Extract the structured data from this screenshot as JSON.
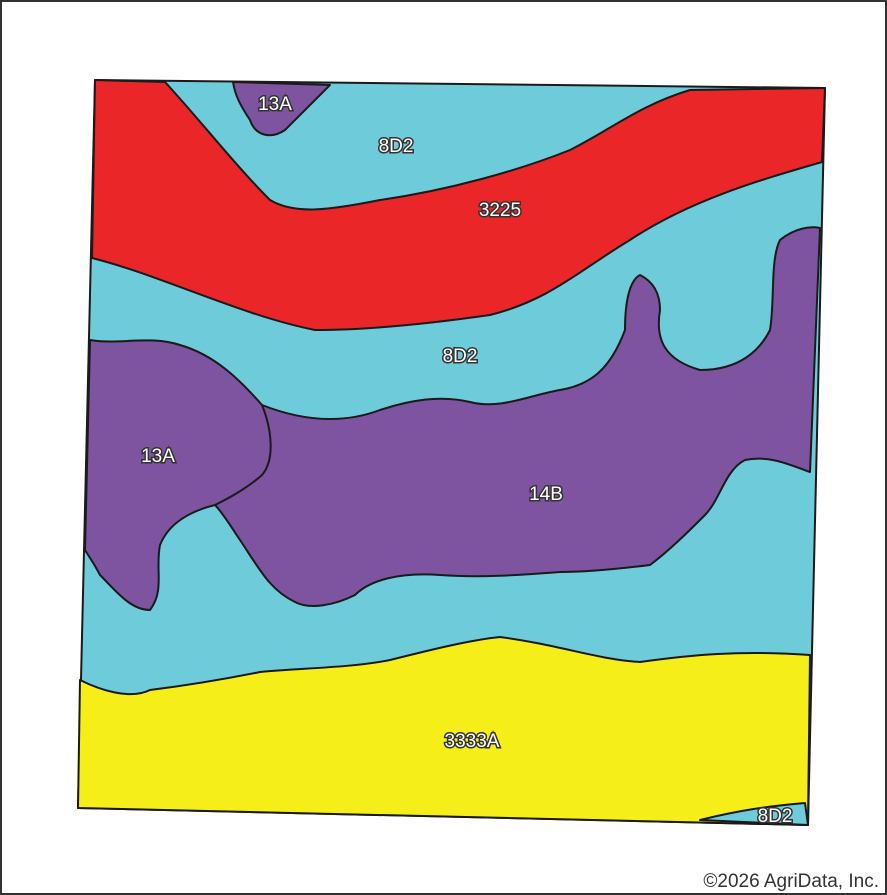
{
  "map": {
    "zones": [
      {
        "id": "13A-top",
        "label": "13A",
        "color": "#7E53A0"
      },
      {
        "id": "8D2-top",
        "label": "8D2",
        "color": "#6ECCDA"
      },
      {
        "id": "3225",
        "label": "3225",
        "color": "#EA2629"
      },
      {
        "id": "8D2-mid",
        "label": "8D2",
        "color": "#6ECCDA"
      },
      {
        "id": "13A-left",
        "label": "13A",
        "color": "#7E53A0"
      },
      {
        "id": "14B",
        "label": "14B",
        "color": "#7E53A0"
      },
      {
        "id": "3333A",
        "label": "3333A",
        "color": "#F6EE18"
      },
      {
        "id": "8D2-corner",
        "label": "8D2",
        "color": "#6ECCDA"
      }
    ]
  },
  "copyright": "©2026 AgriData, Inc."
}
